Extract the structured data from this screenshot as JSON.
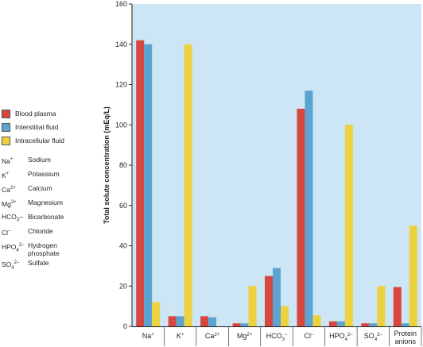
{
  "legend": {
    "series": [
      {
        "name": "Blood plasma",
        "color": "#d8473f"
      },
      {
        "name": "Interstitial fluid",
        "color": "#5ba3d0"
      },
      {
        "name": "Intracellular fluid",
        "color": "#edd240"
      }
    ],
    "ions": [
      {
        "symbol": "Na",
        "sup": "+",
        "sub": "",
        "suffix": "",
        "name": "Sodium"
      },
      {
        "symbol": "K",
        "sup": "+",
        "sub": "",
        "suffix": "",
        "name": "Potassium"
      },
      {
        "symbol": "Ca",
        "sup": "2+",
        "sub": "",
        "suffix": "",
        "name": "Calcium"
      },
      {
        "symbol": "Mg",
        "sup": "2+",
        "sub": "",
        "suffix": "",
        "name": "Magnesium"
      },
      {
        "symbol": "HCO",
        "sup": "",
        "sub": "3",
        "suffix": "–",
        "name": "Bicarbonate"
      },
      {
        "symbol": "Cl",
        "sup": "–",
        "sub": "",
        "suffix": "",
        "name": "Chloride"
      },
      {
        "symbol": "HPO",
        "sup": "2–",
        "sub": "4",
        "suffix": "",
        "name": "Hydrogen\nphosphate"
      },
      {
        "symbol": "SO",
        "sup": "2–",
        "sub": "4",
        "suffix": "",
        "name": "Sulfate"
      }
    ]
  },
  "chart_data": {
    "type": "bar",
    "ylabel": "Total solute concentration (mEq/L)",
    "ylim": [
      0,
      160
    ],
    "yticks": [
      0,
      20,
      40,
      60,
      80,
      100,
      120,
      140,
      160
    ],
    "grid": false,
    "background": "#cde6f5",
    "categories": [
      {
        "base": "Na",
        "sup": "+",
        "sub": ""
      },
      {
        "base": "K",
        "sup": "+",
        "sub": ""
      },
      {
        "base": "Ca",
        "sup": "2+",
        "sub": ""
      },
      {
        "base": "Mg",
        "sup": "2+",
        "sub": ""
      },
      {
        "base": "HCO",
        "sup": "–",
        "sub": "3"
      },
      {
        "base": "Cl",
        "sup": "–",
        "sub": ""
      },
      {
        "base": "HPO",
        "sup": "2–",
        "sub": "4"
      },
      {
        "base": "SO",
        "sup": "2–",
        "sub": "4"
      },
      {
        "base": "Protein\nanions",
        "sup": "",
        "sub": ""
      }
    ],
    "series": [
      {
        "name": "Blood plasma",
        "color": "#d8473f",
        "values": [
          142,
          5,
          5,
          1.5,
          25,
          108,
          2.5,
          1.5,
          19.5
        ]
      },
      {
        "name": "Interstitial fluid",
        "color": "#5ba3d0",
        "values": [
          140,
          5,
          4.5,
          1.5,
          29,
          117,
          2.5,
          1.5,
          1.5
        ]
      },
      {
        "name": "Intracellular fluid",
        "color": "#edd240",
        "values": [
          12,
          140,
          0,
          20,
          10,
          5.5,
          100,
          20,
          50
        ]
      }
    ]
  }
}
